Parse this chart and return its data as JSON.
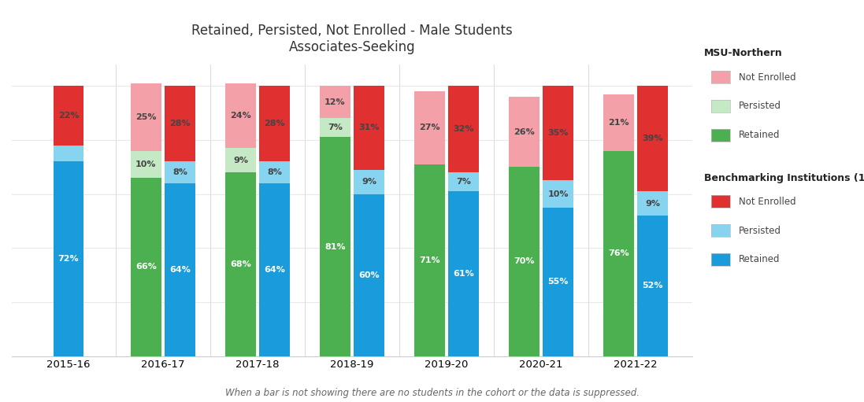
{
  "title_line1": "Retained, Persisted, Not Enrolled - Male Students",
  "title_line2": "Associates-Seeking",
  "footnote": "When a bar is not showing there are no students in the cohort or the data is suppressed.",
  "years": [
    "2015-16",
    "2016-17",
    "2017-18",
    "2018-19",
    "2019-20",
    "2020-21",
    "2021-22"
  ],
  "msu_retained": [
    null,
    66,
    68,
    81,
    71,
    70,
    76
  ],
  "msu_persisted": [
    null,
    10,
    9,
    7,
    0,
    0,
    0
  ],
  "msu_not_enrolled": [
    null,
    25,
    24,
    12,
    27,
    26,
    21
  ],
  "bench_retained": [
    72,
    64,
    64,
    60,
    61,
    55,
    52
  ],
  "bench_persisted": [
    6,
    8,
    8,
    9,
    7,
    10,
    9
  ],
  "bench_not_enrolled": [
    22,
    28,
    28,
    31,
    32,
    35,
    39
  ],
  "msu_retained_labels": [
    "",
    "66%",
    "68%",
    "81%",
    "71%",
    "70%",
    "76%"
  ],
  "msu_persisted_labels": [
    "",
    "10%",
    "9%",
    "7%",
    "",
    "",
    ""
  ],
  "msu_not_enrolled_labels": [
    "",
    "25%",
    "24%",
    "12%",
    "27%",
    "26%",
    "21%"
  ],
  "bench_retained_labels": [
    "72%",
    "64%",
    "64%",
    "60%",
    "61%",
    "55%",
    "52%"
  ],
  "bench_persisted_labels": [
    "",
    "8%",
    "8%",
    "9%",
    "7%",
    "10%",
    "9%"
  ],
  "bench_not_enrolled_labels": [
    "22%",
    "28%",
    "28%",
    "31%",
    "32%",
    "35%",
    "39%"
  ],
  "msu_color_retained": "#4caf50",
  "msu_color_persisted": "#c5e8c5",
  "msu_color_not_enrolled": "#f4a0a8",
  "bench_color_retained": "#1a9bdc",
  "bench_color_persisted": "#87d4f0",
  "bench_color_not_enrolled": "#e03030",
  "bar_width": 0.32,
  "ylim": [
    0,
    108
  ],
  "background_color": "#ffffff",
  "grid_color": "#e8e8e8",
  "text_color_dark": "#444444",
  "label_fontsize": 8.0,
  "tick_fontsize": 9.5
}
